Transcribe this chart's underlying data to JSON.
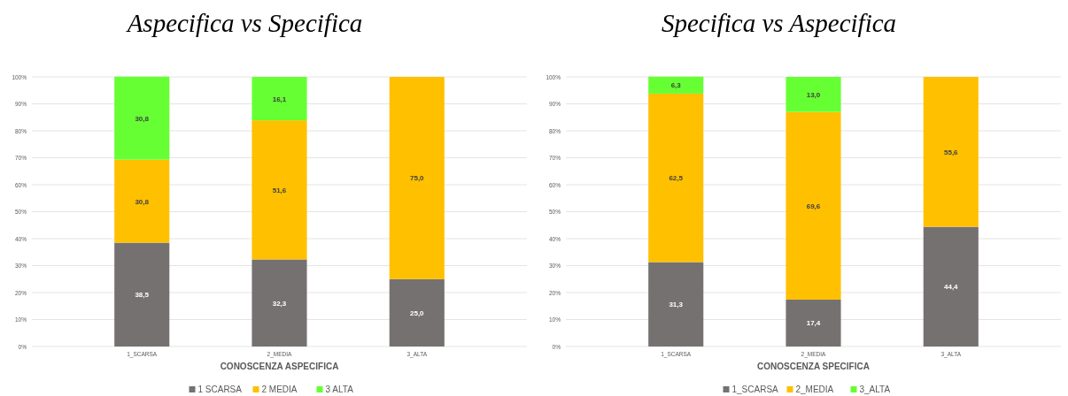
{
  "chart_data": [
    {
      "type": "bar",
      "title": "Aspecifica vs Specifica",
      "xlabel": "CONOSCENZA ASPECIFICA",
      "categories": [
        "1_SCARSA",
        "2_MEDIA",
        "3_ALTA"
      ],
      "stacked": true,
      "ylim": [
        0,
        100
      ],
      "yticks": [
        {
          "value": 0,
          "label": "0%"
        },
        {
          "value": 10,
          "label": "10%"
        },
        {
          "value": 20,
          "label": "20%"
        },
        {
          "value": 30,
          "label": "30%"
        },
        {
          "value": 40,
          "label": "40%"
        },
        {
          "value": 50,
          "label": "50%"
        },
        {
          "value": 60,
          "label": "60%"
        },
        {
          "value": 70,
          "label": "70%"
        },
        {
          "value": 80,
          "label": "80%"
        },
        {
          "value": 90,
          "label": "90%"
        },
        {
          "value": 100,
          "label": "100%"
        }
      ],
      "grid": "y",
      "legend": "bottom",
      "series": [
        {
          "name": "1 SCARSA",
          "color": "#767171",
          "values": [
            38.5,
            32.3,
            25.0
          ],
          "value_labels": [
            "38,5",
            "32,3",
            "25,0"
          ]
        },
        {
          "name": "2 MEDIA",
          "color": "#ffc000",
          "values": [
            30.8,
            51.6,
            75.0
          ],
          "value_labels": [
            "30,8",
            "51,6",
            "75,0"
          ]
        },
        {
          "name": "3 ALTA",
          "color": "#66ff33",
          "values": [
            30.8,
            16.1,
            null
          ],
          "value_labels": [
            "30,8",
            "16,1",
            null
          ]
        }
      ]
    },
    {
      "type": "bar",
      "title": "Specifica vs Aspecifica",
      "xlabel": "CONOSCENZA SPECIFICA",
      "categories": [
        "1_SCARSA",
        "2_MEDIA",
        "3_ALTA"
      ],
      "stacked": true,
      "ylim": [
        0,
        100
      ],
      "yticks": [
        {
          "value": 0,
          "label": "0%"
        },
        {
          "value": 10,
          "label": "10%"
        },
        {
          "value": 20,
          "label": "20%"
        },
        {
          "value": 30,
          "label": "30%"
        },
        {
          "value": 40,
          "label": "40%"
        },
        {
          "value": 50,
          "label": "50%"
        },
        {
          "value": 60,
          "label": "60%"
        },
        {
          "value": 70,
          "label": "70%"
        },
        {
          "value": 80,
          "label": "80%"
        },
        {
          "value": 90,
          "label": "90%"
        },
        {
          "value": 100,
          "label": "100%"
        }
      ],
      "grid": "y",
      "legend": "bottom",
      "series": [
        {
          "name": "1_SCARSA",
          "color": "#767171",
          "values": [
            31.3,
            17.4,
            44.4
          ],
          "value_labels": [
            "31,3",
            "17,4",
            "44,4"
          ]
        },
        {
          "name": "2_MEDIA",
          "color": "#ffc000",
          "values": [
            62.5,
            69.6,
            55.6
          ],
          "value_labels": [
            "62,5",
            "69,6",
            "55,6"
          ]
        },
        {
          "name": "3_ALTA",
          "color": "#66ff33",
          "values": [
            6.3,
            13.0,
            null
          ],
          "value_labels": [
            "6,3",
            "13,0",
            null
          ]
        }
      ]
    }
  ]
}
